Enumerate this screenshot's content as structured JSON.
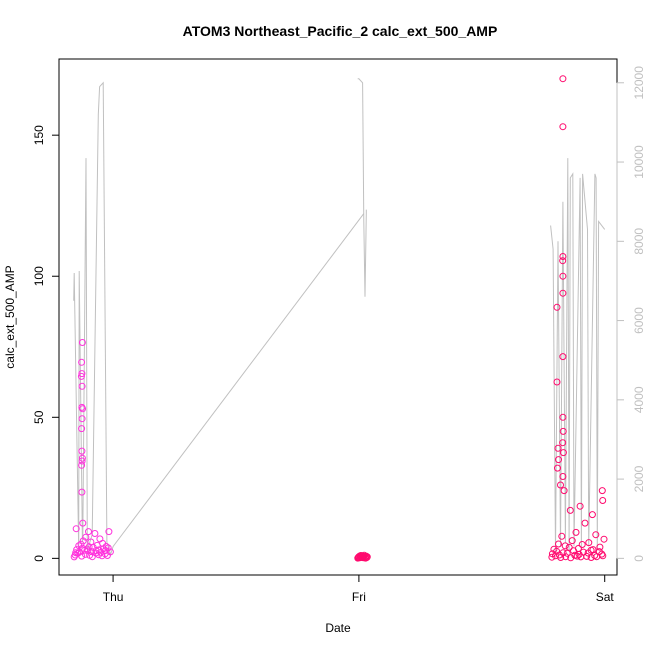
{
  "chart_data": {
    "type": "scatter",
    "title": "ATOM3 Northeast_Pacific_2 calc_ext_500_AMP",
    "xlabel": "Date",
    "ylabel": "calc_ext_500_AMP",
    "x_ticks": [
      "Thu",
      "Fri",
      "Sat"
    ],
    "x_tick_values": [
      1.0,
      2.0,
      3.0
    ],
    "xlim": [
      0.78,
      3.05
    ],
    "ylim": [
      -5.9,
      177
    ],
    "y_ticks": [
      0,
      50,
      100,
      150
    ],
    "y2lim": [
      -420,
      12600
    ],
    "y2_ticks": [
      0,
      2000,
      4000,
      6000,
      8000,
      10000,
      12000
    ],
    "grid": false,
    "legend": "none",
    "colors": {
      "points_thu": "#ff33dd",
      "points_later": "#ff0a6e",
      "secondary_line": "#c0c0c0",
      "axes": "#000000",
      "secondary_axis": "#c0c0c0"
    },
    "point_clusters": [
      {
        "x0": 0.84,
        "x1": 0.99,
        "y": [
          0.5,
          1.2,
          2.0,
          3.1,
          1.8,
          4.5,
          2.2,
          5.0,
          0.8,
          3.6,
          6.2,
          2.9,
          1.4,
          7.5,
          3.3,
          2.6,
          4.1,
          1.1,
          5.8,
          2.4,
          0.6,
          3.9,
          8.8,
          1.9,
          2.7,
          4.6,
          1.3,
          3.0,
          6.9,
          2.1,
          0.9,
          5.3,
          3.4,
          1.6,
          2.8,
          4.2,
          1.0,
          3.7,
          9.5,
          2.3
        ],
        "color_key": "points_thu"
      },
      {
        "x0": 1.995,
        "x1": 2.035,
        "y": [
          0.1,
          0.3,
          0.5,
          0.8,
          0.2,
          0.6,
          1.0,
          0.4,
          0.9,
          0.3,
          0.7,
          0.2,
          0.5,
          1.1,
          0.4,
          0.6,
          0.1,
          0.8,
          0.3,
          0.5
        ],
        "color_key": "points_later"
      },
      {
        "x0": 2.78,
        "x1": 3.0,
        "y": [
          0.4,
          1.6,
          3.2,
          0.9,
          2.5,
          5.1,
          1.2,
          0.3,
          7.8,
          2.0,
          4.4,
          0.6,
          1.8,
          3.9,
          0.2,
          6.3,
          2.7,
          1.1,
          9.2,
          0.8,
          3.5,
          1.4,
          0.5,
          4.9,
          2.2,
          12.5,
          0.7,
          1.9,
          5.6,
          2.9,
          0.3,
          3.1,
          1.0,
          8.4,
          0.6,
          2.4,
          4.0,
          1.5,
          0.9,
          6.8
        ],
        "color_key": "points_later"
      }
    ],
    "points": [
      {
        "x": 0.875,
        "y": 76.5,
        "color_key": "points_thu"
      },
      {
        "x": 0.872,
        "y": 69.5,
        "color_key": "points_thu"
      },
      {
        "x": 0.873,
        "y": 65.5,
        "color_key": "points_thu"
      },
      {
        "x": 0.871,
        "y": 64.5,
        "color_key": "points_thu"
      },
      {
        "x": 0.874,
        "y": 61.0,
        "color_key": "points_thu"
      },
      {
        "x": 0.873,
        "y": 53.5,
        "color_key": "points_thu"
      },
      {
        "x": 0.876,
        "y": 53.0,
        "color_key": "points_thu"
      },
      {
        "x": 0.874,
        "y": 49.5,
        "color_key": "points_thu"
      },
      {
        "x": 0.872,
        "y": 46.0,
        "color_key": "points_thu"
      },
      {
        "x": 0.873,
        "y": 38.0,
        "color_key": "points_thu"
      },
      {
        "x": 0.875,
        "y": 35.5,
        "color_key": "points_thu"
      },
      {
        "x": 0.874,
        "y": 34.5,
        "color_key": "points_thu"
      },
      {
        "x": 0.872,
        "y": 33.0,
        "color_key": "points_thu"
      },
      {
        "x": 0.873,
        "y": 23.5,
        "color_key": "points_thu"
      },
      {
        "x": 0.877,
        "y": 12.5,
        "color_key": "points_thu"
      },
      {
        "x": 0.85,
        "y": 10.5,
        "color_key": "points_thu"
      },
      {
        "x": 0.9,
        "y": 9.5,
        "color_key": "points_thu"
      },
      {
        "x": 2.83,
        "y": 170.0,
        "color_key": "points_later"
      },
      {
        "x": 2.83,
        "y": 153.0,
        "color_key": "points_later"
      },
      {
        "x": 2.83,
        "y": 107.0,
        "color_key": "points_later"
      },
      {
        "x": 2.829,
        "y": 105.5,
        "color_key": "points_later"
      },
      {
        "x": 2.83,
        "y": 100.0,
        "color_key": "points_later"
      },
      {
        "x": 2.83,
        "y": 94.0,
        "color_key": "points_later"
      },
      {
        "x": 2.806,
        "y": 89.0,
        "color_key": "points_later"
      },
      {
        "x": 2.83,
        "y": 71.5,
        "color_key": "points_later"
      },
      {
        "x": 2.806,
        "y": 62.5,
        "color_key": "points_later"
      },
      {
        "x": 2.83,
        "y": 50.0,
        "color_key": "points_later"
      },
      {
        "x": 2.831,
        "y": 45.0,
        "color_key": "points_later"
      },
      {
        "x": 2.829,
        "y": 41.0,
        "color_key": "points_later"
      },
      {
        "x": 2.81,
        "y": 39.0,
        "color_key": "points_later"
      },
      {
        "x": 2.832,
        "y": 37.5,
        "color_key": "points_later"
      },
      {
        "x": 2.812,
        "y": 35.0,
        "color_key": "points_later"
      },
      {
        "x": 2.808,
        "y": 32.0,
        "color_key": "points_later"
      },
      {
        "x": 2.83,
        "y": 29.0,
        "color_key": "points_later"
      },
      {
        "x": 2.82,
        "y": 26.0,
        "color_key": "points_later"
      },
      {
        "x": 2.835,
        "y": 24.0,
        "color_key": "points_later"
      },
      {
        "x": 2.99,
        "y": 24.0,
        "color_key": "points_later"
      },
      {
        "x": 2.992,
        "y": 20.5,
        "color_key": "points_later"
      },
      {
        "x": 2.9,
        "y": 18.5,
        "color_key": "points_later"
      },
      {
        "x": 2.86,
        "y": 17.0,
        "color_key": "points_later"
      },
      {
        "x": 2.95,
        "y": 15.5,
        "color_key": "points_later"
      }
    ],
    "secondary_line": {
      "x": [
        0.84,
        0.842,
        0.86,
        0.862,
        0.875,
        0.877,
        0.89,
        0.895,
        0.91,
        0.915,
        0.94,
        0.945,
        0.96,
        0.975,
        0.99,
        1.0,
        1.995,
        2.0,
        2.015,
        2.02,
        2.025,
        2.03,
        2.03,
        2.78,
        2.79,
        2.8,
        2.81,
        2.82,
        2.83,
        2.84,
        2.85,
        2.855,
        2.86,
        2.87,
        2.875,
        2.9,
        2.905,
        2.91,
        2.93,
        2.935,
        2.96,
        2.965,
        2.97,
        2.975,
        3.0,
        3.0,
        2.02,
        1.0
      ],
      "y": [
        6500,
        7200,
        200,
        7250,
        400,
        500,
        10100,
        200,
        500,
        600,
        11200,
        11900,
        12000,
        400,
        100,
        300,
        12100,
        12100,
        12000,
        8500,
        6600,
        8700,
        8800,
        8400,
        7800,
        150,
        8000,
        300,
        9000,
        400,
        10100,
        200,
        9600,
        9700,
        300,
        9600,
        200,
        9700,
        8300,
        300,
        9700,
        9600,
        200,
        8500,
        8300,
        8300,
        8700,
        300
      ],
      "segments": [
        [
          0,
          16
        ],
        [
          16,
          23
        ],
        [
          23,
          46
        ],
        [
          46,
          48
        ]
      ]
    }
  }
}
